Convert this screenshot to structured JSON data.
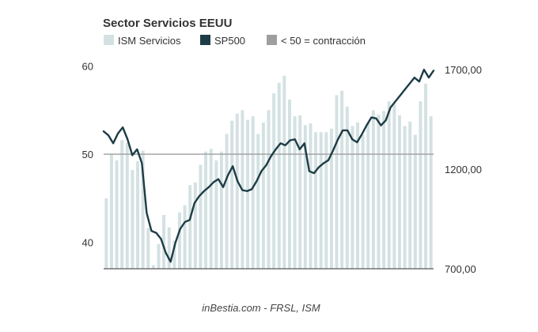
{
  "chart_data": {
    "type": "bar",
    "title": "Sector Servicios EEUU",
    "subtitle": "",
    "xlabel": "",
    "ylabel": "",
    "source": "inBestia.com - FRSL, ISM",
    "legend": {
      "placement": "top-left",
      "items": [
        {
          "label": "ISM Servicios",
          "color": "#d4e1e2"
        },
        {
          "label": "SP500",
          "color": "#1d3c45"
        },
        {
          "label": "< 50 = contracción",
          "color": "#9e9e9e"
        }
      ]
    },
    "y_left": {
      "min": 37,
      "max": 60.5,
      "ticks": [
        "60",
        "50",
        "40"
      ],
      "tick_values": [
        60,
        50,
        40
      ]
    },
    "y_right": {
      "min": 700,
      "max": 1740,
      "ticks": [
        "1700,00",
        "1200,00",
        "700,00"
      ],
      "tick_values": [
        1700,
        1200,
        700
      ]
    },
    "reference_line": {
      "value": 50,
      "axis": "left",
      "color": "#9e9e9e"
    },
    "grid": false,
    "series": [
      {
        "name": "ISM Servicios",
        "type": "bar",
        "axis": "left",
        "color": "#d4e1e2",
        "values": [
          45.0,
          50.0,
          49.3,
          51.6,
          51.3,
          48.2,
          49.2,
          50.4,
          41.6,
          37.4,
          39.8,
          43.1,
          41.7,
          40.2,
          43.4,
          44.2,
          46.5,
          46.8,
          48.8,
          50.3,
          50.6,
          49.3,
          50.3,
          52.3,
          53.8,
          54.6,
          55.0,
          53.9,
          54.3,
          52.3,
          53.6,
          55.0,
          56.9,
          58.1,
          58.9,
          56.2,
          54.3,
          54.4,
          53.3,
          53.5,
          52.5,
          52.5,
          52.5,
          52.9,
          56.7,
          57.2,
          55.4,
          53.2,
          53.6,
          52.2,
          53.6,
          55.0,
          54.5,
          54.9,
          56.0,
          55.7,
          54.4,
          53.2,
          53.7,
          52.2,
          56.0,
          58.0,
          54.3
        ]
      },
      {
        "name": "SP500",
        "type": "line",
        "axis": "right",
        "color": "#1d3c45",
        "values": [
          1390,
          1370,
          1330,
          1380,
          1410,
          1350,
          1270,
          1300,
          1230,
          980,
          890,
          880,
          850,
          780,
          735,
          830,
          900,
          935,
          945,
          1030,
          1065,
          1090,
          1110,
          1135,
          1150,
          1110,
          1170,
          1215,
          1140,
          1095,
          1090,
          1100,
          1140,
          1190,
          1220,
          1265,
          1300,
          1330,
          1320,
          1345,
          1350,
          1300,
          1330,
          1190,
          1180,
          1210,
          1230,
          1245,
          1295,
          1350,
          1395,
          1395,
          1350,
          1335,
          1375,
          1420,
          1460,
          1455,
          1420,
          1445,
          1510,
          1540,
          1570,
          1600,
          1630,
          1660,
          1640,
          1700,
          1660,
          1695
        ]
      }
    ]
  }
}
